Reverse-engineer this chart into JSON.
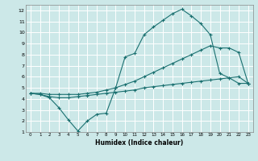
{
  "xlabel": "Humidex (Indice chaleur)",
  "bg_color": "#cce8e8",
  "grid_color": "#ffffff",
  "line_color": "#1a7070",
  "xlim": [
    -0.5,
    23.5
  ],
  "ylim": [
    1,
    12.5
  ],
  "xticks": [
    0,
    1,
    2,
    3,
    4,
    5,
    6,
    7,
    8,
    9,
    10,
    11,
    12,
    13,
    14,
    15,
    16,
    17,
    18,
    19,
    20,
    21,
    22,
    23
  ],
  "yticks": [
    1,
    2,
    3,
    4,
    5,
    6,
    7,
    8,
    9,
    10,
    11,
    12
  ],
  "line1_x": [
    0,
    1,
    2,
    3,
    4,
    5,
    6,
    7,
    8,
    9,
    10,
    11,
    12,
    13,
    14,
    15,
    16,
    17,
    18,
    19,
    20,
    21,
    22,
    23
  ],
  "line1_y": [
    4.5,
    4.4,
    4.2,
    4.1,
    4.1,
    4.2,
    4.3,
    4.4,
    4.5,
    4.6,
    4.7,
    4.8,
    5.0,
    5.1,
    5.2,
    5.3,
    5.4,
    5.5,
    5.6,
    5.7,
    5.8,
    5.9,
    6.0,
    5.4
  ],
  "line2_x": [
    0,
    1,
    2,
    3,
    4,
    5,
    6,
    7,
    8,
    9,
    10,
    11,
    12,
    13,
    14,
    15,
    16,
    17,
    18,
    19,
    20,
    21,
    22,
    23
  ],
  "line2_y": [
    4.5,
    4.5,
    4.4,
    4.4,
    4.4,
    4.4,
    4.5,
    4.6,
    4.8,
    5.0,
    5.3,
    5.6,
    6.0,
    6.4,
    6.8,
    7.2,
    7.6,
    8.0,
    8.4,
    8.8,
    8.6,
    8.6,
    8.2,
    5.4
  ],
  "line3_x": [
    0,
    1,
    2,
    3,
    4,
    5,
    6,
    7,
    8,
    9,
    10,
    11,
    12,
    13,
    14,
    15,
    16,
    17,
    18,
    19,
    20,
    21,
    22,
    23
  ],
  "line3_y": [
    4.5,
    4.4,
    4.1,
    3.2,
    2.1,
    1.1,
    2.0,
    2.6,
    2.7,
    5.0,
    7.8,
    8.1,
    9.8,
    10.5,
    11.1,
    11.7,
    12.1,
    11.5,
    10.8,
    9.8,
    6.3,
    5.9,
    5.4,
    5.4
  ]
}
